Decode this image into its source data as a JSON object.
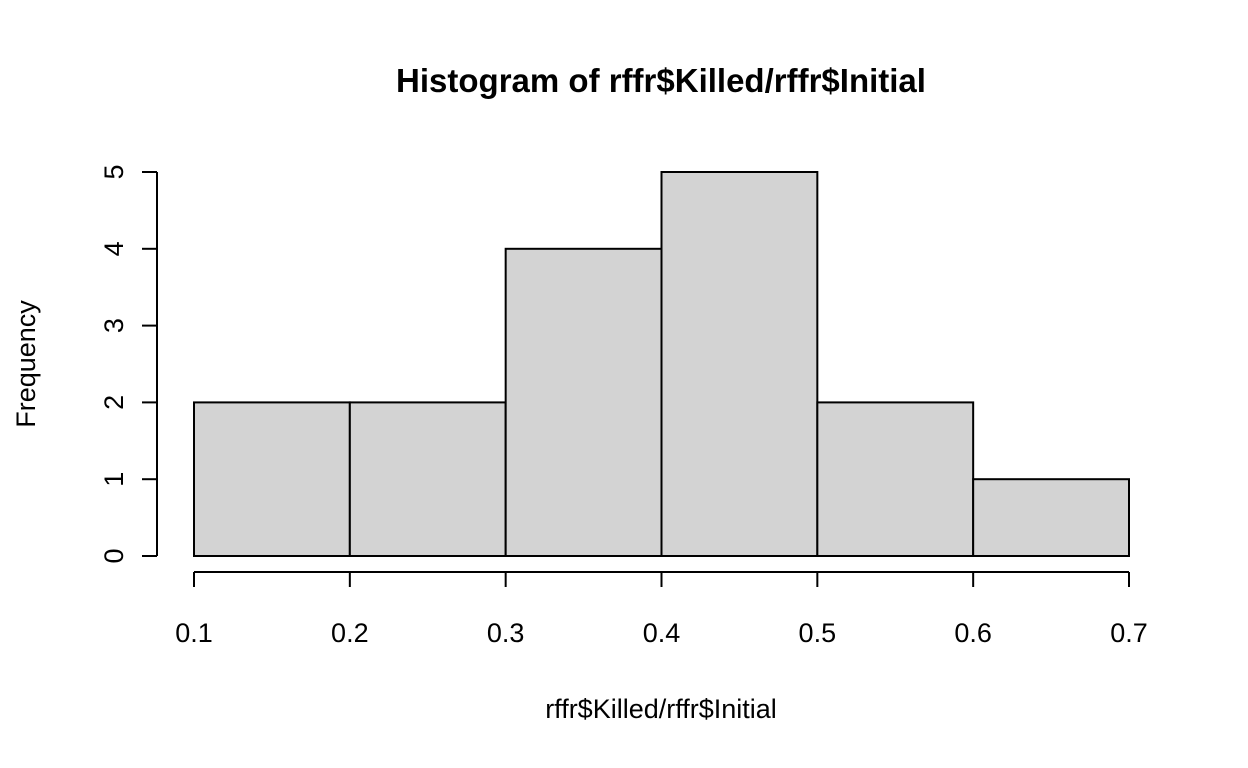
{
  "chart_data": {
    "type": "bar",
    "title": "Histogram of rffr$Killed/rffr$Initial",
    "xlabel": "rffr$Killed/rffr$Initial",
    "ylabel": "Frequency",
    "bins": [
      {
        "from": 0.1,
        "to": 0.2,
        "count": 2
      },
      {
        "from": 0.2,
        "to": 0.3,
        "count": 2
      },
      {
        "from": 0.3,
        "to": 0.4,
        "count": 4
      },
      {
        "from": 0.4,
        "to": 0.5,
        "count": 5
      },
      {
        "from": 0.5,
        "to": 0.6,
        "count": 2
      },
      {
        "from": 0.6,
        "to": 0.7,
        "count": 1
      }
    ],
    "xlim": [
      0.1,
      0.7
    ],
    "ylim": [
      0,
      5
    ],
    "x_ticks": [
      "0.1",
      "0.2",
      "0.3",
      "0.4",
      "0.5",
      "0.6",
      "0.7"
    ],
    "y_ticks": [
      "0",
      "1",
      "2",
      "3",
      "4",
      "5"
    ],
    "grid": false,
    "bar_fill": "#d3d3d3",
    "bar_stroke": "#000000"
  }
}
